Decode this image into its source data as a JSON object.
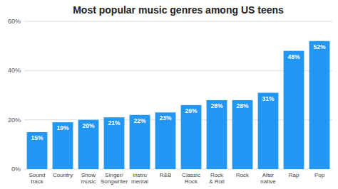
{
  "chart_data": {
    "type": "bar",
    "title": "Most popular music genres among US teens",
    "categories": [
      "Sound\ntrack",
      "Country",
      "Show\nmusic",
      "Singer/\nSongwriter",
      "Instru\nmental",
      "R&B",
      "Classic\nRock",
      "Rock\n& Roll",
      "Rock",
      "Alter\nnative",
      "Rap",
      "Pop"
    ],
    "values": [
      15,
      19,
      20,
      21,
      22,
      23,
      26,
      28,
      28,
      31,
      48,
      52
    ],
    "value_labels": [
      "15%",
      "19%",
      "20%",
      "21%",
      "22%",
      "23%",
      "26%",
      "28%",
      "28%",
      "31%",
      "48%",
      "52%"
    ],
    "color": "#2196F3",
    "ylim": [
      0,
      60
    ],
    "yticks": [
      {
        "value": 0,
        "label": "0%"
      },
      {
        "value": 20,
        "label": "20%"
      },
      {
        "value": 40,
        "label": "40%"
      },
      {
        "value": 60,
        "label": "60%"
      }
    ],
    "grid": true,
    "data_labels": true
  }
}
